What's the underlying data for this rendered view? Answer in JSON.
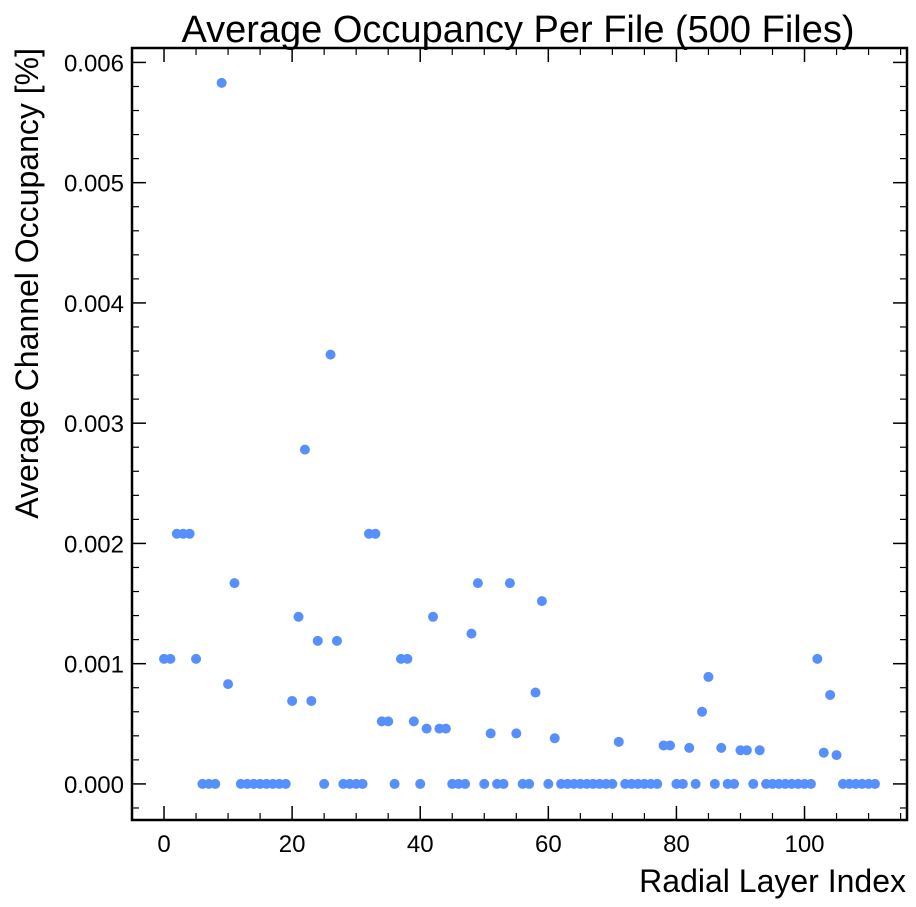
{
  "chart_data": {
    "type": "scatter",
    "title": "Average Occupancy Per File (500 Files)",
    "xlabel": "Radial Layer Index",
    "ylabel": "Average Channel Occupancy [%]",
    "xlim": [
      -5,
      116
    ],
    "ylim": [
      -0.0003,
      0.00612
    ],
    "xticks": [
      0,
      20,
      40,
      60,
      80,
      100
    ],
    "xtick_labels": [
      "0",
      "20",
      "40",
      "60",
      "80",
      "100"
    ],
    "yticks": [
      0,
      0.001,
      0.002,
      0.003,
      0.004,
      0.005,
      0.006
    ],
    "ytick_labels": [
      "0.000",
      "0.001",
      "0.002",
      "0.003",
      "0.004",
      "0.005",
      "0.006"
    ],
    "marker_color": "#5790fc",
    "grid": false,
    "series": [
      {
        "x": [
          0,
          1,
          2,
          3,
          4,
          5,
          6,
          7,
          8,
          9,
          10,
          11,
          12,
          13,
          14,
          15,
          16,
          17,
          18,
          19,
          20,
          21,
          22,
          23,
          24,
          25,
          26,
          27,
          28,
          29,
          30,
          31,
          32,
          33,
          34,
          35,
          36,
          37,
          38,
          39,
          40,
          41,
          42,
          43,
          44,
          45,
          46,
          47,
          48,
          49,
          50,
          51,
          52,
          53,
          54,
          55,
          56,
          57,
          58,
          59,
          60,
          61,
          62,
          63,
          64,
          65,
          66,
          67,
          68,
          69,
          70,
          71,
          72,
          73,
          74,
          75,
          76,
          77,
          78,
          79,
          80,
          81,
          82,
          83,
          84,
          85,
          86,
          87,
          88,
          89,
          90,
          91,
          92,
          93,
          94,
          95,
          96,
          97,
          98,
          99,
          100,
          101,
          102,
          103,
          104,
          105,
          106,
          107,
          108,
          109,
          110,
          111
        ],
        "y": [
          0.00104,
          0.00104,
          0.00208,
          0.00208,
          0.00208,
          0.00104,
          0,
          0,
          0,
          0.00583,
          0.00083,
          0.00167,
          0,
          0,
          0,
          0,
          0,
          0,
          0,
          0,
          0.00069,
          0.00139,
          0.00278,
          0.00069,
          0.00119,
          0,
          0.00357,
          0.00119,
          0,
          0,
          0,
          0,
          0.00208,
          0.00208,
          0.00052,
          0.00052,
          0,
          0.00104,
          0.00104,
          0.00052,
          0,
          0.00046,
          0.00139,
          0.00046,
          0.00046,
          0,
          0,
          0,
          0.00125,
          0.00167,
          0,
          0.00042,
          0,
          0,
          0.00167,
          0.00042,
          0,
          0,
          0.00076,
          0.00152,
          0,
          0.00038,
          0,
          0,
          0,
          0,
          0,
          0,
          0,
          0,
          0,
          0.00035,
          0,
          0,
          0,
          0,
          0,
          0,
          0.00032,
          0.00032,
          0,
          0,
          0.0003,
          0,
          0.0006,
          0.00089,
          0,
          0.0003,
          0,
          0,
          0.00028,
          0.00028,
          0,
          0.00028,
          0,
          0,
          0,
          0,
          0,
          0,
          0,
          0,
          0.00104,
          0.00026,
          0.00074,
          0.00024,
          0,
          0,
          0,
          0,
          0,
          0
        ]
      }
    ]
  }
}
